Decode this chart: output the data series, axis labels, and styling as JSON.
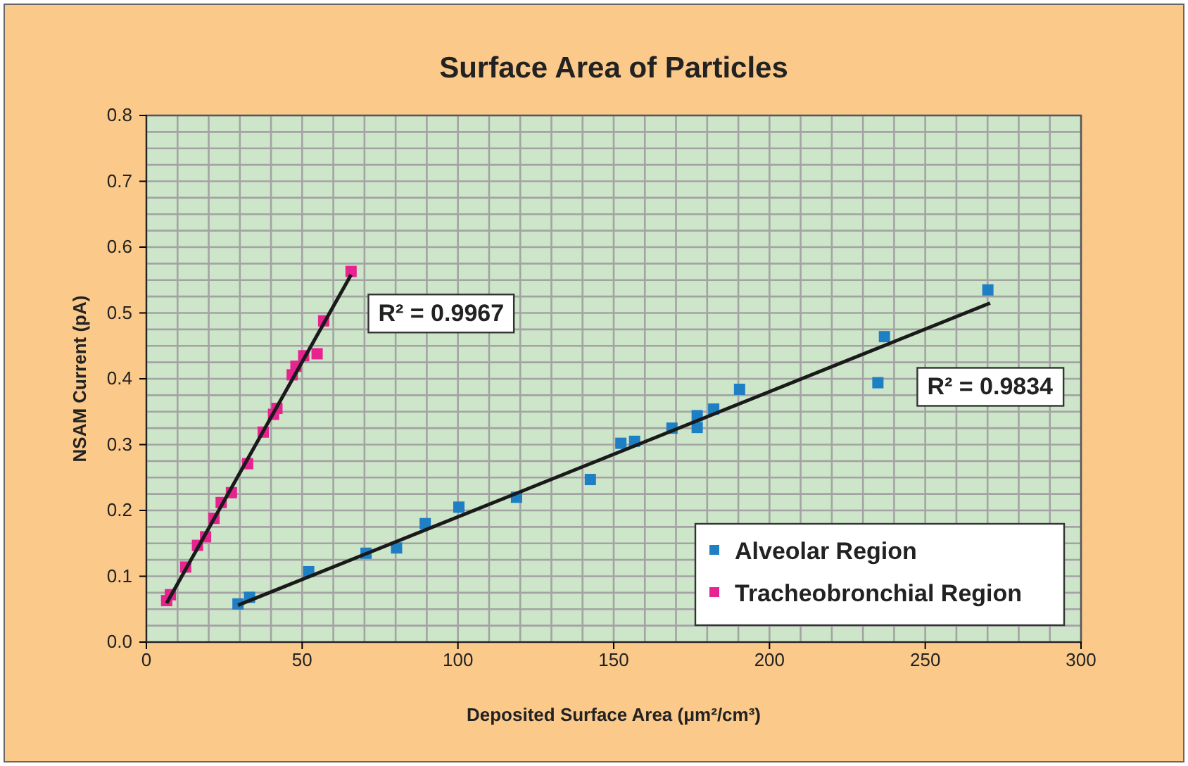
{
  "chart_data": {
    "type": "scatter",
    "title": "Surface Area of Particles",
    "xlabel": "Deposited Surface Area (μm²/cm³)",
    "ylabel": "NSAM Current (pA)",
    "xlim": [
      0,
      300
    ],
    "ylim": [
      0,
      0.8
    ],
    "xticks": [
      0,
      {
        "value": 10,
        "label": null
      },
      {
        "value": 20,
        "label": null
      },
      {
        "value": 30,
        "label": null
      },
      {
        "value": 40,
        "label": null
      },
      50,
      {
        "value": 60,
        "label": null
      },
      {
        "value": 70,
        "label": null
      },
      {
        "value": 80,
        "label": null
      },
      {
        "value": 90,
        "label": null
      },
      100,
      {
        "value": 110,
        "label": null
      },
      {
        "value": 120,
        "label": null
      },
      {
        "value": 130,
        "label": null
      },
      {
        "value": 140,
        "label": null
      },
      150,
      {
        "value": 160,
        "label": null
      },
      {
        "value": 170,
        "label": null
      },
      {
        "value": 180,
        "label": null
      },
      {
        "value": 190,
        "label": null
      },
      200,
      {
        "value": 210,
        "label": null
      },
      {
        "value": 220,
        "label": null
      },
      {
        "value": 230,
        "label": null
      },
      {
        "value": 240,
        "label": null
      },
      250,
      {
        "value": 260,
        "label": null
      },
      {
        "value": 270,
        "label": null
      },
      {
        "value": 280,
        "label": null
      },
      {
        "value": 290,
        "label": null
      },
      300
    ],
    "yticks": [
      {
        "value": 0,
        "label": "0.0"
      },
      {
        "value": 0.025,
        "label": null
      },
      0.1,
      {
        "value": 0.075,
        "label": null
      },
      0.2,
      {
        "value": 0.125,
        "label": null
      },
      0.3,
      {
        "value": 0.175,
        "label": null
      },
      0.4,
      {
        "value": 0.225,
        "label": null
      },
      0.5,
      {
        "value": 0.275,
        "label": null
      },
      0.6,
      {
        "value": 0.325,
        "label": null
      },
      0.7,
      {
        "value": 0.375,
        "label": null
      },
      0.8,
      {
        "value": 0.425,
        "label": null
      },
      {
        "value": 0.05,
        "label": null
      },
      {
        "value": 0.15,
        "label": null
      },
      {
        "value": 0.25,
        "label": null
      },
      {
        "value": 0.35,
        "label": null
      },
      {
        "value": 0.45,
        "label": null
      },
      {
        "value": 0.475,
        "label": null
      },
      {
        "value": 0.525,
        "label": null
      },
      {
        "value": 0.55,
        "label": null
      },
      {
        "value": 0.575,
        "label": null
      },
      {
        "value": 0.625,
        "label": null
      },
      {
        "value": 0.65,
        "label": null
      },
      {
        "value": 0.675,
        "label": null
      },
      {
        "value": 0.725,
        "label": null
      },
      {
        "value": 0.75,
        "label": null
      },
      {
        "value": 0.775,
        "label": null
      }
    ],
    "grid": true,
    "legend": "bottom right",
    "series": [
      {
        "name": "Alveolar Region",
        "color": "#1f7fc4",
        "marker": "square",
        "x": [
          29.4,
          33.1,
          52.1,
          70.5,
          80.3,
          89.5,
          100.3,
          118.8,
          142.5,
          152.3,
          156.7,
          168.7,
          176.8,
          176.8,
          182.1,
          190.4,
          234.8,
          236.9,
          270.1
        ],
        "values": [
          0.058,
          0.068,
          0.107,
          0.135,
          0.143,
          0.18,
          0.205,
          0.22,
          0.247,
          0.302,
          0.305,
          0.325,
          0.344,
          0.326,
          0.354,
          0.384,
          0.394,
          0.464,
          0.535
        ]
      },
      {
        "name": "Tracheobronchial Region",
        "color": "#e6238f",
        "marker": "square",
        "x": [
          6.5,
          7.7,
          12.6,
          16.4,
          19.0,
          21.7,
          24.0,
          27.3,
          32.5,
          37.5,
          40.8,
          41.9,
          46.8,
          48.0,
          50.5,
          54.8,
          56.9,
          65.7
        ],
        "values": [
          0.063,
          0.072,
          0.114,
          0.147,
          0.16,
          0.188,
          0.212,
          0.227,
          0.271,
          0.319,
          0.346,
          0.355,
          0.406,
          0.419,
          0.435,
          0.438,
          0.488,
          0.563
        ]
      },
      {
        "type": "line",
        "color": "#1a1a1a",
        "x": [
          29.4,
          270.8
        ],
        "values": [
          0.056,
          0.515
        ]
      },
      {
        "type": "line",
        "color": "#1a1a1a",
        "x": [
          6.5,
          65.7
        ],
        "values": [
          0.059,
          0.558
        ]
      }
    ],
    "annotations": [
      "R² = 0.9967",
      "R² = 0.9834"
    ]
  }
}
